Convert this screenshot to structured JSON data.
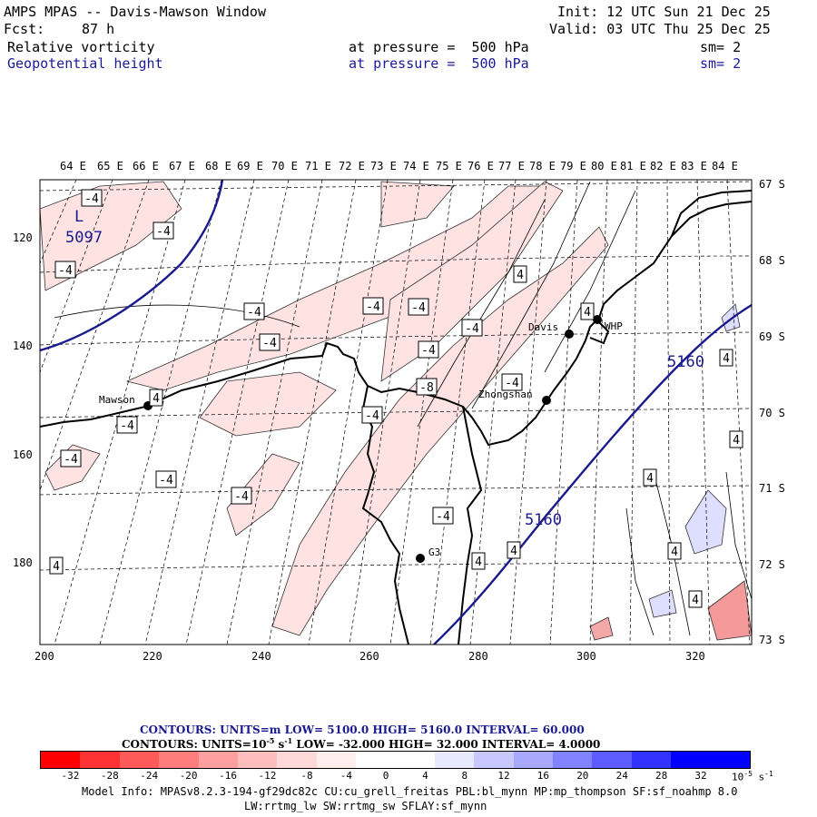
{
  "header": {
    "title": "AMPS MPAS -- Davis-Mawson Window",
    "init": "Init: 12 UTC Sun 21 Dec 25",
    "fcst_label": "Fcst:",
    "fcst_value": "87 h",
    "valid": "Valid: 03 UTC Thu 25 Dec 25",
    "field1": "Relative vorticity",
    "field1_level": "at pressure =  500 hPa",
    "field1_sm": "sm= 2",
    "field2": "Geopotential height",
    "field2_level": "at pressure =  500 hPa",
    "field2_sm": "sm= 2"
  },
  "map": {
    "lon_labels": [
      "64 E",
      "65 E",
      "66 E",
      "67 E",
      "68 E",
      "69 E",
      "70 E",
      "71 E",
      "72 E",
      "73 E",
      "74 E",
      "75 E",
      "76 E",
      "77 E",
      "78 E",
      "79 E",
      "80 E",
      "81 E",
      "82 E",
      "83 E",
      "84 E"
    ],
    "lat_labels": [
      "67 S",
      "68 S",
      "69 S",
      "70 S",
      "71 S",
      "72 S",
      "73 S"
    ],
    "grid_y_labels": [
      "120",
      "140",
      "160",
      "180"
    ],
    "grid_x_labels": [
      "200",
      "220",
      "240",
      "260",
      "280",
      "300",
      "320"
    ],
    "stations": [
      {
        "name": "Mawson"
      },
      {
        "name": "Davis"
      },
      {
        "name": "WHP"
      },
      {
        "name": "Zhongshan"
      },
      {
        "name": "G3"
      }
    ],
    "height_labels": [
      "5097",
      "5160",
      "5160"
    ],
    "low_marker": "L",
    "vort_labels": [
      "-4",
      "-4",
      "-4",
      "-4",
      "-4",
      "-4",
      "-4",
      "-4",
      "-4",
      "-4",
      "-4",
      "-4",
      "-4",
      "-4",
      "-4",
      "-4",
      "-8",
      "4",
      "4",
      "4",
      "4",
      "4",
      "4",
      "4",
      "4",
      "4",
      "4",
      "4"
    ]
  },
  "legend": {
    "line1": "CONTOURS:  UNITS=m  LOW=  5100.0      HIGH=  5160.0      INTERVAL=   60.000",
    "line2": "CONTOURS:  UNITS=10",
    "line2_exp": "-5",
    "line2_unit": " s",
    "line2_unitexp": "-1",
    "line2_rest": "  LOW=  -32.000       HIGH=   32.000       INTERVAL=    4.0000",
    "colorbar_labels": [
      "-32",
      "-28",
      "-24",
      "-20",
      "-16",
      "-12",
      "-8",
      "-4",
      "0",
      "4",
      "8",
      "12",
      "16",
      "20",
      "24",
      "28",
      "32"
    ],
    "colorbar_unit": "10",
    "colorbar_unit_exp": "-5",
    "colorbar_unit_s": " s",
    "colorbar_unit_sexp": "-1",
    "colorbar_colors": [
      "#ff0000",
      "#ff3333",
      "#ff5a5a",
      "#ff7d7d",
      "#ff9f9f",
      "#ffbdbd",
      "#ffd8d8",
      "#ffeeee",
      "#ffffff",
      "#ffffff",
      "#e8e8ff",
      "#c8c8ff",
      "#a8a8ff",
      "#8282ff",
      "#5c5cff",
      "#3333ff",
      "#0000ff",
      "#0000ff"
    ]
  },
  "footer": {
    "model_info": "Model Info: MPASv8.2.3-194-gf29dc82c CU:cu_grell_freitas PBL:bl_mynn MP:mp_thompson SF:sf_noahmp 8.0",
    "model_info2": "LW:rrtmg_lw SW:rrtmg_sw SFLAY:sf_mynn"
  }
}
